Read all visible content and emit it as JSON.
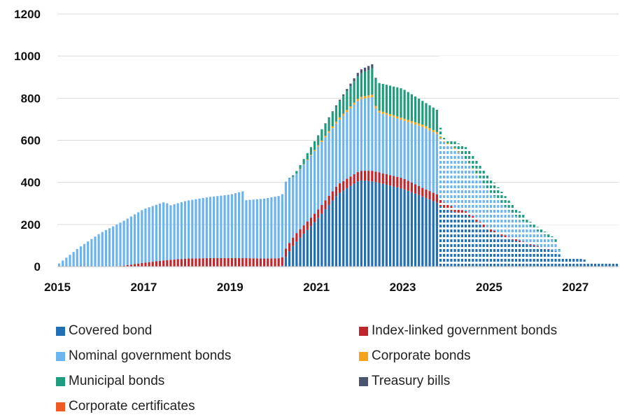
{
  "chart_data": {
    "type": "bar",
    "stacked": true,
    "xlabel": "",
    "ylabel": "",
    "title": "",
    "ylim": [
      0,
      1200
    ],
    "xlim": [
      2015.0,
      2028.0
    ],
    "y_ticks": [
      "0",
      "200",
      "400",
      "600",
      "800",
      "1000",
      "1200"
    ],
    "x_ticks": [
      "2015",
      "2017",
      "2019",
      "2021",
      "2023",
      "2025",
      "2027"
    ],
    "grid": "horizontal",
    "legend_position": "bottom",
    "actual_until": 2023.83,
    "projection_style": "dashed",
    "series": [
      {
        "name": "Covered bond",
        "color": "#1f6fb2"
      },
      {
        "name": "Index-linked government bonds",
        "color": "#c0272d"
      },
      {
        "name": "Nominal government bonds",
        "color": "#6cb4ee"
      },
      {
        "name": "Corporate bonds",
        "color": "#f5a31a"
      },
      {
        "name": "Municipal bonds",
        "color": "#1f9c7d"
      },
      {
        "name": "Treasury bills",
        "color": "#4a5670"
      },
      {
        "name": "Corporate certificates",
        "color": "#ef5a24"
      }
    ],
    "keypoints": [
      {
        "t": 2015.0,
        "v": [
          0,
          0,
          8,
          0,
          0,
          0,
          0
        ]
      },
      {
        "t": 2015.5,
        "v": [
          0,
          0,
          90,
          0,
          0,
          0,
          0
        ]
      },
      {
        "t": 2016.0,
        "v": [
          0,
          0,
          160,
          0,
          0,
          0,
          0
        ]
      },
      {
        "t": 2016.5,
        "v": [
          0,
          3,
          210,
          0,
          0,
          0,
          0
        ]
      },
      {
        "t": 2017.0,
        "v": [
          0,
          18,
          255,
          0,
          0,
          0,
          0
        ]
      },
      {
        "t": 2017.5,
        "v": [
          0,
          30,
          278,
          0,
          0,
          0,
          0
        ]
      },
      {
        "t": 2017.6,
        "v": [
          0,
          32,
          258,
          0,
          0,
          0,
          0
        ]
      },
      {
        "t": 2018.0,
        "v": [
          0,
          38,
          275,
          0,
          0,
          0,
          0
        ]
      },
      {
        "t": 2018.5,
        "v": [
          0,
          40,
          290,
          0,
          0,
          0,
          0
        ]
      },
      {
        "t": 2019.0,
        "v": [
          0,
          40,
          302,
          0,
          0,
          0,
          0
        ]
      },
      {
        "t": 2019.3,
        "v": [
          0,
          40,
          318,
          0,
          0,
          0,
          0
        ]
      },
      {
        "t": 2019.35,
        "v": [
          0,
          40,
          275,
          0,
          0,
          0,
          0
        ]
      },
      {
        "t": 2019.8,
        "v": [
          0,
          38,
          285,
          0,
          0,
          0,
          0
        ]
      },
      {
        "t": 2020.2,
        "v": [
          0,
          40,
          298,
          0,
          0,
          0,
          0
        ]
      },
      {
        "t": 2020.3,
        "v": [
          50,
          40,
          320,
          0,
          0,
          0,
          0
        ]
      },
      {
        "t": 2020.5,
        "v": [
          110,
          40,
          280,
          0,
          10,
          0,
          0
        ]
      },
      {
        "t": 2021.0,
        "v": [
          220,
          40,
          300,
          5,
          45,
          0,
          0
        ]
      },
      {
        "t": 2021.5,
        "v": [
          345,
          45,
          300,
          10,
          75,
          5,
          0
        ]
      },
      {
        "t": 2022.0,
        "v": [
          410,
          45,
          340,
          10,
          110,
          18,
          0
        ]
      },
      {
        "t": 2022.3,
        "v": [
          405,
          50,
          350,
          12,
          125,
          20,
          0
        ]
      },
      {
        "t": 2022.4,
        "v": [
          400,
          50,
          285,
          10,
          130,
          0,
          0
        ]
      },
      {
        "t": 2023.0,
        "v": [
          370,
          50,
          275,
          10,
          140,
          0,
          0
        ]
      },
      {
        "t": 2023.5,
        "v": [
          330,
          40,
          290,
          12,
          110,
          0,
          0
        ]
      },
      {
        "t": 2023.83,
        "v": [
          300,
          40,
          285,
          10,
          105,
          0,
          0
        ]
      },
      {
        "t": 2023.9,
        "v": [
          280,
          30,
          290,
          5,
          10,
          0,
          0
        ]
      },
      {
        "t": 2024.2,
        "v": [
          260,
          20,
          280,
          5,
          30,
          0,
          0
        ]
      },
      {
        "t": 2024.5,
        "v": [
          245,
          15,
          240,
          3,
          60,
          0,
          0
        ]
      },
      {
        "t": 2025.0,
        "v": [
          170,
          10,
          180,
          0,
          70,
          0,
          0
        ]
      },
      {
        "t": 2025.5,
        "v": [
          130,
          8,
          120,
          0,
          45,
          0,
          0
        ]
      },
      {
        "t": 2026.0,
        "v": [
          100,
          5,
          80,
          0,
          20,
          0,
          0
        ]
      },
      {
        "t": 2026.6,
        "v": [
          70,
          0,
          40,
          0,
          15,
          0,
          0
        ]
      },
      {
        "t": 2026.65,
        "v": [
          45,
          0,
          3,
          0,
          0,
          0,
          0
        ]
      },
      {
        "t": 2027.2,
        "v": [
          35,
          0,
          0,
          0,
          0,
          0,
          0
        ]
      },
      {
        "t": 2027.3,
        "v": [
          15,
          0,
          0,
          0,
          0,
          0,
          0
        ]
      },
      {
        "t": 2028.0,
        "v": [
          15,
          0,
          0,
          0,
          0,
          0,
          0
        ]
      }
    ]
  }
}
